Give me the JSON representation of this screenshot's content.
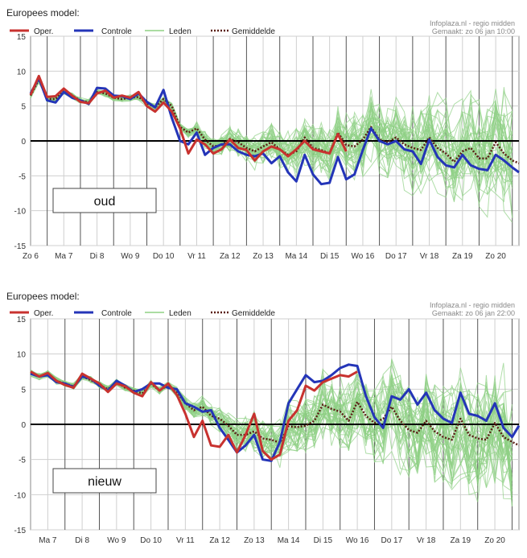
{
  "chart_data": [
    {
      "type": "line",
      "model_label": "Europees model:",
      "source": "Infoplaza.nl - regio midden",
      "made": "Gemaakt: zo 06 jan 10:00",
      "annotation": "oud",
      "legend": [
        "Oper.",
        "Controle",
        "Leden",
        "Gemiddelde"
      ],
      "ylim": [
        -15,
        15
      ],
      "yticks": [
        -15,
        -10,
        -5,
        0,
        5,
        10,
        15
      ],
      "xlim": [
        0,
        14.7
      ],
      "day_labels": [
        "Zo 6",
        "Ma 7",
        "Di 8",
        "Wo 9",
        "Do 10",
        "Vr 11",
        "Za 12",
        "Zo 13",
        "Ma 14",
        "Di 15",
        "Wo 16",
        "Do 17",
        "Vr 18",
        "Za 19",
        "Zo 20"
      ],
      "day_positions": [
        0,
        1,
        2,
        3,
        4,
        5,
        6,
        7,
        8,
        9,
        10,
        11,
        12,
        13,
        14
      ],
      "grid": true,
      "series": [
        {
          "name": "Oper.",
          "color": "#c8322f",
          "x": [
            0,
            0.25,
            0.5,
            0.75,
            1,
            1.25,
            1.5,
            1.75,
            2,
            2.25,
            2.5,
            2.75,
            3,
            3.25,
            3.5,
            3.75,
            4,
            4.25,
            4.5,
            4.75,
            5,
            5.25,
            5.5,
            5.75,
            6,
            6.25,
            6.5,
            6.75,
            7,
            7.25,
            7.5,
            7.75,
            8,
            8.25,
            8.5,
            8.75,
            9,
            9.25,
            9.5
          ],
          "y": [
            6.6,
            9.3,
            6.3,
            6.4,
            7.5,
            6.5,
            5.6,
            5.4,
            6.8,
            7.2,
            6.2,
            6.5,
            6.2,
            7.0,
            5.0,
            4.2,
            5.5,
            4.2,
            1.8,
            -1.8,
            0.2,
            -0.5,
            -1.8,
            -1.2,
            0.2,
            -1.0,
            -1.3,
            -2.8,
            -1.5,
            -0.8,
            -1.2,
            -2.2,
            -1.2,
            0.0,
            -1.2,
            -1.5,
            -1.8,
            1.0,
            -1.5
          ]
        },
        {
          "name": "Controle",
          "color": "#2435b8",
          "x": [
            0,
            0.25,
            0.5,
            0.75,
            1,
            1.25,
            1.5,
            1.75,
            2,
            2.25,
            2.5,
            2.75,
            3,
            3.25,
            3.5,
            3.75,
            4,
            4.25,
            4.5,
            4.75,
            5,
            5.25,
            5.5,
            5.75,
            6,
            6.25,
            6.5,
            6.75,
            7,
            7.25,
            7.5,
            7.75,
            8,
            8.25,
            8.5,
            8.75,
            9,
            9.25,
            9.5,
            9.75,
            10,
            10.25,
            10.5,
            10.75,
            11,
            11.25,
            11.5,
            11.75,
            12,
            12.25,
            12.5,
            12.75,
            13,
            13.25,
            13.5,
            13.75,
            14,
            14.25,
            14.5,
            14.7
          ],
          "y": [
            6.8,
            9.0,
            5.8,
            5.5,
            7.0,
            6.2,
            5.8,
            5.3,
            7.6,
            7.5,
            6.5,
            6.4,
            6.0,
            6.8,
            5.6,
            4.8,
            7.3,
            3.3,
            0.0,
            -0.5,
            1.2,
            -2.0,
            -1.0,
            -0.5,
            -0.5,
            -1.5,
            -2.0,
            -2.2,
            -1.8,
            -3.2,
            -2.2,
            -4.5,
            -5.8,
            -2.0,
            -4.8,
            -6.2,
            -6.0,
            -2.3,
            -5.5,
            -4.8,
            -1.3,
            1.8,
            0.0,
            -0.5,
            0.0,
            -1.2,
            -1.5,
            -3.3,
            0.2,
            -2.3,
            -3.5,
            -3.8,
            -2.0,
            -3.5,
            -4.0,
            -4.2,
            -2.0,
            -2.8,
            -3.8,
            -4.5
          ]
        },
        {
          "name": "Gemiddelde",
          "color": "#5a1e14",
          "x": [
            0,
            0.25,
            0.5,
            0.75,
            1,
            1.25,
            1.5,
            1.75,
            2,
            2.25,
            2.5,
            2.75,
            3,
            3.25,
            3.5,
            3.75,
            4,
            4.25,
            4.5,
            4.75,
            5,
            5.25,
            5.5,
            5.75,
            6,
            6.25,
            6.5,
            6.75,
            7,
            7.25,
            7.5,
            7.75,
            8,
            8.25,
            8.5,
            8.75,
            9,
            9.25,
            9.5,
            9.75,
            10,
            10.25,
            10.5,
            10.75,
            11,
            11.25,
            11.5,
            11.75,
            12,
            12.25,
            12.5,
            12.75,
            13,
            13.25,
            13.5,
            13.75,
            14,
            14.25,
            14.5,
            14.7
          ],
          "y": [
            6.5,
            8.8,
            6.0,
            6.0,
            7.2,
            6.5,
            5.8,
            5.5,
            7.0,
            6.8,
            6.2,
            6.0,
            6.2,
            6.3,
            5.4,
            4.8,
            6.0,
            5.0,
            2.0,
            1.2,
            1.8,
            0.2,
            -0.8,
            -0.6,
            0.3,
            -0.2,
            -1.0,
            -1.5,
            -0.8,
            -0.2,
            -1.2,
            -2.0,
            -1.5,
            0.5,
            -1.0,
            -1.3,
            -1.8,
            1.2,
            -0.6,
            -0.8,
            0.2,
            2.0,
            0.2,
            -0.2,
            0.5,
            -0.5,
            -1.0,
            -1.3,
            0.5,
            -1.0,
            -1.8,
            -3.0,
            -1.5,
            -1.0,
            -2.5,
            -2.5,
            -0.2,
            -1.8,
            -2.8,
            -3.2
          ]
        }
      ]
    },
    {
      "type": "line",
      "model_label": "Europees model:",
      "source": "Infoplaza.nl - regio midden",
      "made": "Gemaakt: zo 06 jan 22:00",
      "annotation": "nieuw",
      "legend": [
        "Oper.",
        "Controle",
        "Leden",
        "Gemiddelde"
      ],
      "ylim": [
        -15,
        15
      ],
      "yticks": [
        -15,
        -10,
        -5,
        0,
        5,
        10,
        15
      ],
      "xlim": [
        0.5,
        14.7
      ],
      "day_labels": [
        "Ma 7",
        "Di 8",
        "Wo 9",
        "Do 10",
        "Vr 11",
        "Za 12",
        "Zo 13",
        "Ma 14",
        "Di 15",
        "Wo 16",
        "Do 17",
        "Vr 18",
        "Za 19",
        "Zo 20"
      ],
      "day_positions": [
        1,
        2,
        3,
        4,
        5,
        6,
        7,
        8,
        9,
        10,
        11,
        12,
        13,
        14
      ],
      "grid": true,
      "series": [
        {
          "name": "Oper.",
          "color": "#c8322f",
          "x": [
            0.5,
            0.75,
            1,
            1.25,
            1.5,
            1.75,
            2,
            2.25,
            2.5,
            2.75,
            3,
            3.25,
            3.5,
            3.75,
            4,
            4.25,
            4.5,
            4.75,
            5,
            5.25,
            5.5,
            5.75,
            6,
            6.25,
            6.5,
            6.75,
            7,
            7.25,
            7.5,
            7.75,
            8,
            8.25,
            8.5,
            8.75,
            9,
            9.25,
            9.5,
            9.75,
            10
          ],
          "y": [
            7.5,
            6.8,
            7.3,
            6.2,
            5.6,
            5.2,
            7.2,
            6.5,
            5.8,
            4.6,
            5.8,
            5.4,
            4.5,
            4.0,
            6.0,
            4.8,
            5.8,
            4.2,
            1.5,
            -1.8,
            0.5,
            -3.0,
            -3.2,
            -1.5,
            -4.0,
            -1.5,
            1.5,
            -3.8,
            -5.0,
            -4.3,
            0.5,
            2.0,
            5.5,
            4.8,
            6.0,
            6.5,
            7.0,
            6.8,
            7.5
          ]
        },
        {
          "name": "Controle",
          "color": "#2435b8",
          "x": [
            0.5,
            0.75,
            1,
            1.25,
            1.5,
            1.75,
            2,
            2.25,
            2.5,
            2.75,
            3,
            3.25,
            3.5,
            3.75,
            4,
            4.25,
            4.5,
            4.75,
            5,
            5.25,
            5.5,
            5.75,
            6,
            6.25,
            6.5,
            6.75,
            7,
            7.25,
            7.5,
            7.75,
            8,
            8.25,
            8.5,
            8.75,
            9,
            9.25,
            9.5,
            9.75,
            10,
            10.25,
            10.5,
            10.75,
            11,
            11.25,
            11.5,
            11.75,
            12,
            12.25,
            12.5,
            12.75,
            13,
            13.25,
            13.5,
            13.75,
            14,
            14.25,
            14.5,
            14.7
          ],
          "y": [
            7.2,
            6.8,
            7.0,
            6.0,
            5.8,
            5.3,
            6.8,
            6.5,
            5.5,
            4.8,
            6.2,
            5.5,
            4.6,
            5.0,
            5.8,
            5.8,
            5.2,
            5.0,
            3.0,
            2.5,
            1.8,
            2.0,
            -0.5,
            -2.2,
            -4.0,
            -3.0,
            -1.5,
            -5.0,
            -5.2,
            -2.5,
            3.0,
            5.0,
            7.0,
            6.0,
            6.2,
            7.0,
            8.0,
            8.5,
            8.3,
            4.0,
            1.0,
            -0.5,
            4.0,
            3.5,
            5.0,
            2.8,
            4.5,
            2.0,
            0.8,
            0.2,
            4.5,
            1.5,
            1.2,
            0.5,
            3.0,
            -0.5,
            -1.8,
            -0.2
          ]
        },
        {
          "name": "Gemiddelde",
          "color": "#5a1e14",
          "x": [
            0.5,
            0.75,
            1,
            1.25,
            1.5,
            1.75,
            2,
            2.25,
            2.5,
            2.75,
            3,
            3.25,
            3.5,
            3.75,
            4,
            4.25,
            4.5,
            4.75,
            5,
            5.25,
            5.5,
            5.75,
            6,
            6.25,
            6.5,
            6.75,
            7,
            7.25,
            7.5,
            7.75,
            8,
            8.25,
            8.5,
            8.75,
            9,
            9.25,
            9.5,
            9.75,
            10,
            10.25,
            10.5,
            10.75,
            11,
            11.25,
            11.5,
            11.75,
            12,
            12.25,
            12.5,
            12.75,
            13,
            13.25,
            13.5,
            13.75,
            14,
            14.25,
            14.5,
            14.7
          ],
          "y": [
            7.3,
            6.8,
            7.2,
            6.2,
            5.8,
            5.4,
            6.8,
            6.3,
            5.6,
            5.0,
            6.0,
            5.2,
            4.8,
            4.4,
            5.8,
            4.8,
            5.6,
            4.6,
            3.0,
            2.0,
            2.5,
            1.2,
            0.8,
            -0.2,
            -1.5,
            -1.5,
            -1.0,
            -2.0,
            -2.2,
            -2.6,
            -0.3,
            -0.4,
            -0.2,
            0.5,
            2.8,
            2.2,
            1.8,
            0.5,
            3.2,
            1.2,
            0.2,
            0.8,
            2.5,
            0.5,
            -0.8,
            -1.2,
            0.5,
            -1.0,
            -1.8,
            -2.2,
            0.8,
            -1.5,
            -2.0,
            -2.2,
            0.2,
            -1.8,
            -2.5,
            -3.0
          ]
        }
      ]
    }
  ],
  "colors": {
    "oper": "#c8322f",
    "controle": "#2435b8",
    "leden": "#8fd084",
    "gemiddelde": "#5a1e14",
    "grid": "#cfcfcf",
    "zero": "#000000"
  }
}
